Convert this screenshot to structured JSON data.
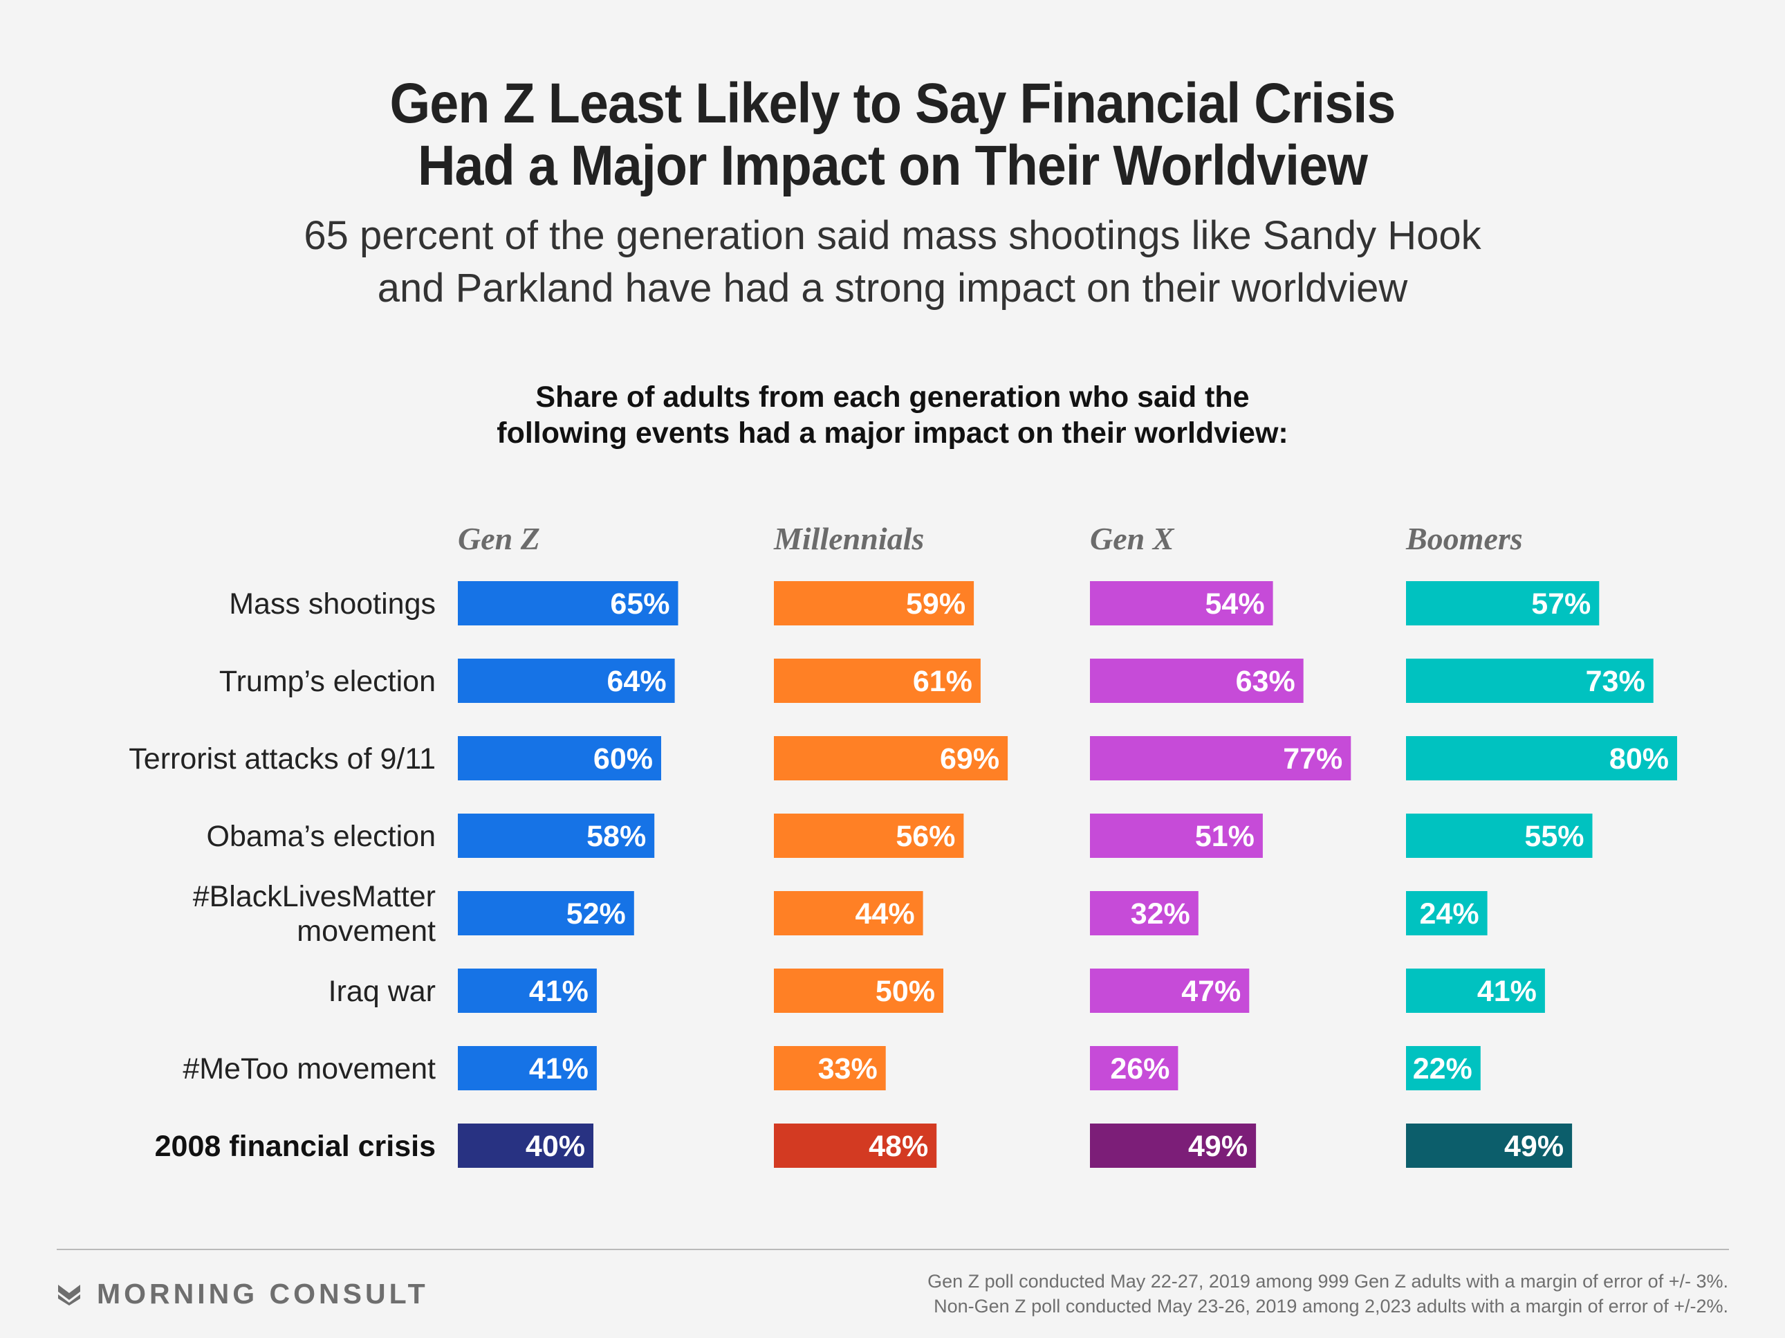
{
  "title_lines": [
    "Gen Z Least Likely to Say Financial Crisis",
    "Had a Major Impact on Their Worldview"
  ],
  "subtitle_lines": [
    "65 percent of the generation said mass shootings like Sandy Hook",
    "and Parkland have had a strong impact on their worldview"
  ],
  "chart_heading_lines": [
    "Share of adults from each generation who said the",
    "following events had a major impact on their worldview:"
  ],
  "chart_data": {
    "type": "bar",
    "orientation": "horizontal",
    "layout": "small-multiples",
    "categories": [
      [
        "Mass shootings"
      ],
      [
        "Trump’s election"
      ],
      [
        "Terrorist attacks of 9/11"
      ],
      [
        "Obama’s election"
      ],
      [
        "#BlackLivesMatter",
        "movement"
      ],
      [
        "Iraq war"
      ],
      [
        "#MeToo movement"
      ],
      [
        "2008 financial crisis"
      ]
    ],
    "highlighted_category": "2008 financial crisis",
    "series": [
      {
        "name": "Gen Z",
        "color": "#1673e6",
        "highlight_color": "#283282",
        "values": [
          65,
          64,
          60,
          58,
          52,
          41,
          41,
          40
        ]
      },
      {
        "name": "Millennials",
        "color": "#ff8025",
        "highlight_color": "#d33a22",
        "values": [
          59,
          61,
          69,
          56,
          44,
          50,
          33,
          48
        ]
      },
      {
        "name": "Gen X",
        "color": "#c64bd8",
        "highlight_color": "#7c1e78",
        "values": [
          54,
          63,
          77,
          51,
          32,
          47,
          26,
          49
        ]
      },
      {
        "name": "Boomers",
        "color": "#00c2c0",
        "highlight_color": "#0c5e6b",
        "values": [
          57,
          73,
          80,
          55,
          24,
          41,
          22,
          49
        ]
      }
    ],
    "value_suffix": "%",
    "xlim": [
      0,
      100
    ]
  },
  "brand": {
    "name": "MORNING CONSULT",
    "color": "#6e6e6e",
    "logo_icon": "morning-consult-chevron-logo"
  },
  "notes": [
    "Gen Z poll conducted May 22-27, 2019 among 999 Gen Z adults with a margin of error of +/- 3%.",
    "Non-Gen Z poll conducted May 23-26, 2019 among 2,023 adults with a margin of error of +/-2%."
  ]
}
